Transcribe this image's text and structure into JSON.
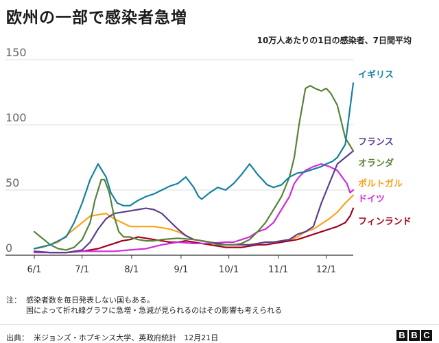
{
  "header": {
    "title": "欧州の一部で感染者急増",
    "subtitle": "10万人あたりの1日の感染者、7日間平均"
  },
  "chart_data": {
    "type": "line",
    "title": "欧州の一部で感染者急増",
    "subtitle": "10万人あたりの1日の感染者、7日間平均",
    "xlabel": "",
    "ylabel": "",
    "ylim": [
      0,
      150
    ],
    "yticks": [
      0,
      50,
      100,
      150
    ],
    "x_range": [
      0,
      200
    ],
    "x_tick_labels": [
      "6/1",
      "7/1",
      "8/1",
      "9/1",
      "10/1",
      "11/1",
      "12/1"
    ],
    "x_tick_days": [
      0,
      30,
      61,
      92,
      122,
      153,
      183
    ],
    "grid": true,
    "series": [
      {
        "name": "イギリス",
        "color": "#1380a1",
        "x": [
          0,
          10,
          20,
          25,
          30,
          35,
          40,
          45,
          48,
          52,
          56,
          60,
          65,
          70,
          75,
          80,
          85,
          90,
          95,
          100,
          103,
          105,
          110,
          115,
          120,
          125,
          130,
          135,
          140,
          143,
          146,
          150,
          155,
          160,
          165,
          170,
          175,
          180,
          183,
          187,
          190,
          195,
          200
        ],
        "y": [
          5,
          8,
          14,
          25,
          40,
          58,
          70,
          60,
          48,
          40,
          38,
          38,
          42,
          45,
          47,
          50,
          53,
          55,
          60,
          52,
          45,
          43,
          48,
          52,
          50,
          55,
          62,
          70,
          62,
          58,
          54,
          52,
          54,
          60,
          63,
          64,
          66,
          68,
          70,
          72,
          75,
          85,
          132
        ]
      },
      {
        "name": "フランス",
        "color": "#5a3e8e",
        "x": [
          0,
          10,
          20,
          30,
          35,
          40,
          45,
          50,
          55,
          60,
          65,
          70,
          75,
          80,
          85,
          90,
          95,
          100,
          105,
          110,
          115,
          120,
          125,
          130,
          135,
          140,
          145,
          150,
          155,
          160,
          165,
          170,
          175,
          180,
          185,
          190,
          195,
          200
        ],
        "y": [
          3,
          2,
          2,
          4,
          10,
          20,
          28,
          32,
          33,
          34,
          35,
          36,
          35,
          32,
          26,
          20,
          15,
          12,
          11,
          10,
          9,
          8,
          8,
          8,
          8,
          9,
          10,
          10,
          11,
          12,
          16,
          18,
          22,
          40,
          55,
          70,
          75,
          80
        ]
      },
      {
        "name": "オランダ",
        "color": "#588238",
        "x": [
          0,
          3,
          6,
          10,
          15,
          20,
          25,
          30,
          35,
          38,
          40,
          42,
          44,
          47,
          50,
          53,
          56,
          60,
          65,
          70,
          75,
          80,
          90,
          100,
          110,
          115,
          120,
          125,
          130,
          135,
          140,
          145,
          150,
          155,
          160,
          163,
          166,
          170,
          173,
          176,
          180,
          183,
          186,
          190,
          195,
          200
        ],
        "y": [
          18,
          15,
          12,
          8,
          5,
          4,
          6,
          12,
          25,
          42,
          50,
          58,
          58,
          48,
          30,
          18,
          14,
          14,
          12,
          11,
          11,
          12,
          13,
          12,
          10,
          8,
          8,
          8,
          9,
          12,
          18,
          25,
          35,
          45,
          60,
          75,
          100,
          128,
          130,
          128,
          126,
          128,
          124,
          115,
          90,
          80
        ]
      },
      {
        "name": "ポルトガル",
        "color": "#fba21a",
        "x": [
          0,
          5,
          10,
          15,
          20,
          25,
          30,
          35,
          40,
          45,
          50,
          55,
          60,
          65,
          70,
          75,
          80,
          85,
          90,
          95,
          100,
          105,
          110,
          115,
          120,
          125,
          130,
          135,
          140,
          145,
          150,
          155,
          160,
          165,
          170,
          175,
          180,
          185,
          190,
          195,
          200
        ],
        "y": [
          5,
          6,
          8,
          10,
          15,
          20,
          25,
          30,
          31,
          32,
          28,
          25,
          22,
          22,
          22,
          22,
          21,
          20,
          18,
          15,
          12,
          11,
          10,
          9,
          8,
          8,
          8,
          8,
          9,
          10,
          10,
          11,
          12,
          14,
          18,
          20,
          24,
          28,
          33,
          40,
          46
        ]
      },
      {
        "name": "ドイツ",
        "color": "#d02cd8",
        "x": [
          0,
          10,
          20,
          30,
          40,
          50,
          60,
          70,
          80,
          90,
          100,
          110,
          120,
          125,
          130,
          135,
          140,
          145,
          150,
          155,
          160,
          163,
          166,
          170,
          175,
          180,
          185,
          190,
          193,
          196,
          198,
          200
        ],
        "y": [
          2,
          2,
          2,
          3,
          3,
          3,
          4,
          5,
          8,
          10,
          9,
          9,
          10,
          10,
          12,
          14,
          18,
          20,
          25,
          35,
          45,
          55,
          60,
          65,
          68,
          70,
          68,
          65,
          60,
          55,
          48,
          50
        ]
      },
      {
        "name": "フィンランド",
        "color": "#a0001c",
        "x": [
          0,
          10,
          20,
          30,
          40,
          45,
          50,
          55,
          60,
          65,
          70,
          75,
          80,
          85,
          90,
          95,
          100,
          105,
          110,
          115,
          120,
          125,
          130,
          135,
          140,
          145,
          150,
          155,
          160,
          165,
          170,
          175,
          180,
          185,
          190,
          195,
          198,
          200
        ],
        "y": [
          3,
          2,
          2,
          3,
          5,
          7,
          9,
          11,
          12,
          14,
          13,
          12,
          11,
          10,
          10,
          11,
          10,
          9,
          8,
          7,
          6,
          6,
          6,
          7,
          8,
          8,
          9,
          10,
          11,
          12,
          14,
          16,
          18,
          20,
          22,
          25,
          30,
          36
        ]
      }
    ]
  },
  "footer": {
    "note_label": "注：",
    "note_line1": "感染者数を毎日発表しない国もある。",
    "note_line2": "国によって折れ線グラフに急増・急減が見られるのはその影響も考えられる",
    "source": "出典：  米ジョンズ・ホプキンス大学、英政府統計　12月21日"
  },
  "logo": {
    "letters": [
      "B",
      "B",
      "C"
    ]
  }
}
